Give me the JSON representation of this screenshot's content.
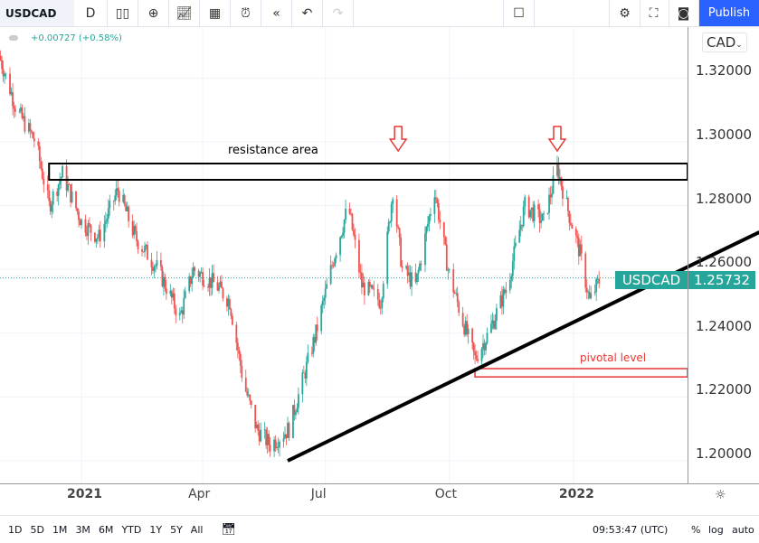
{
  "toolbar": {
    "symbol": "USDCAD",
    "interval": "D",
    "publish": "Publish",
    "icons": [
      "candles-icon",
      "add-indicator-icon",
      "indicators-icon",
      "layout-icon",
      "alert-icon",
      "replay-icon",
      "undo-icon",
      "redo-icon",
      "rectangle-icon",
      "settings-icon",
      "fullscreen-icon",
      "camera-icon"
    ]
  },
  "legend": {
    "change": "+0.00727 (+0.58%)",
    "currency": "CAD"
  },
  "price_label": {
    "symbol": "USDCAD",
    "price": "1.25732"
  },
  "bottom": {
    "ranges": [
      "1D",
      "5D",
      "1M",
      "3M",
      "6M",
      "YTD",
      "1Y",
      "5Y",
      "All"
    ],
    "time": "09:53:47 (UTC)",
    "pct": "%",
    "log": "log",
    "auto": "auto"
  },
  "colors": {
    "up": "#26a69a",
    "down": "#ef5350",
    "accent": "#2962ff",
    "annotation": "#e53935"
  },
  "chart_data": {
    "type": "candlestick",
    "y_ticks": [
      "1.32000",
      "1.30000",
      "1.28000",
      "1.26000",
      "1.24000",
      "1.22000",
      "1.20000"
    ],
    "x_ticks": [
      "2021",
      "Apr",
      "Jul",
      "Oct",
      "2022"
    ],
    "ylim": [
      1.195,
      1.338
    ],
    "path": [
      [
        "2020-11-01",
        1.327
      ],
      [
        "2020-11-14",
        1.31
      ],
      [
        "2020-11-28",
        1.3
      ],
      [
        "2020-12-08",
        1.28
      ],
      [
        "2020-12-18",
        1.29
      ],
      [
        "2021-01-01",
        1.275
      ],
      [
        "2021-01-14",
        1.27
      ],
      [
        "2021-01-28",
        1.285
      ],
      [
        "2021-02-10",
        1.27
      ],
      [
        "2021-02-27",
        1.26
      ],
      [
        "2021-03-15",
        1.245
      ],
      [
        "2021-03-25",
        1.26
      ],
      [
        "2021-04-11",
        1.255
      ],
      [
        "2021-04-21",
        1.25
      ],
      [
        "2021-05-01",
        1.225
      ],
      [
        "2021-05-11",
        1.21
      ],
      [
        "2021-05-21",
        1.205
      ],
      [
        "2021-06-04",
        1.21
      ],
      [
        "2021-06-14",
        1.225
      ],
      [
        "2021-06-24",
        1.24
      ],
      [
        "2021-07-08",
        1.265
      ],
      [
        "2021-07-18",
        1.28
      ],
      [
        "2021-07-28",
        1.255
      ],
      [
        "2021-08-11",
        1.25
      ],
      [
        "2021-08-20",
        1.285
      ],
      [
        "2021-08-27",
        1.26
      ],
      [
        "2021-09-06",
        1.255
      ],
      [
        "2021-09-20",
        1.285
      ],
      [
        "2021-09-30",
        1.26
      ],
      [
        "2021-10-10",
        1.245
      ],
      [
        "2021-10-20",
        1.232
      ],
      [
        "2021-10-30",
        1.24
      ],
      [
        "2021-11-13",
        1.255
      ],
      [
        "2021-11-26",
        1.28
      ],
      [
        "2021-12-10",
        1.275
      ],
      [
        "2021-12-20",
        1.292
      ],
      [
        "2021-12-27",
        1.28
      ],
      [
        "2022-01-06",
        1.265
      ],
      [
        "2022-01-13",
        1.25
      ],
      [
        "2022-01-21",
        1.2573
      ]
    ],
    "last_price": 1.25732,
    "annotations": {
      "resistance": {
        "label": "resistance area",
        "from": "2020-12-08",
        "to_axis": true,
        "price_top": 1.2932,
        "price_bottom": 1.2881
      },
      "pivotal": {
        "label": "pivotal level",
        "from": "2021-10-20",
        "to_axis": true,
        "price_top": 1.2289,
        "price_bottom": 1.2263
      },
      "trendline": {
        "start": [
          "2021-06-03",
          1.2
        ],
        "end": [
          "2022-05-19",
          1.2717
        ]
      },
      "arrows": [
        "2021-08-24",
        "2021-12-20"
      ]
    }
  }
}
